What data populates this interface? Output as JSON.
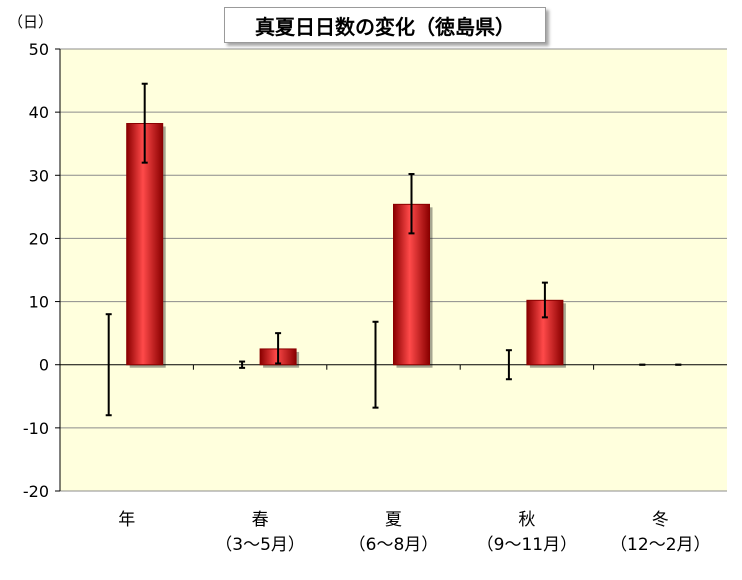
{
  "chart_data": {
    "type": "bar",
    "title": "真夏日日数の変化（徳島県）",
    "ylabel": "（日）",
    "ylim": [
      -20,
      50
    ],
    "yticks": [
      -20,
      -10,
      0,
      10,
      20,
      30,
      40,
      50
    ],
    "ytick_labels": [
      "-20",
      "-10",
      "0",
      "10",
      "20",
      "30",
      "40",
      "50"
    ],
    "grid": true,
    "legend": "none",
    "categories": [
      {
        "name": "年",
        "sub": ""
      },
      {
        "name": "春",
        "sub": "（3～5月）"
      },
      {
        "name": "夏",
        "sub": "（6～8月）"
      },
      {
        "name": "秋",
        "sub": "（9～11月）"
      },
      {
        "name": "冬",
        "sub": "（12～2月）"
      }
    ],
    "series": [
      {
        "values": [
          0,
          0,
          0,
          0,
          0
        ],
        "error_low": [
          -8,
          -0.5,
          -6.8,
          -2.3,
          0
        ],
        "error_high": [
          8,
          0.5,
          6.8,
          2.3,
          0
        ]
      },
      {
        "values": [
          38.2,
          2.5,
          25.4,
          10.2,
          0
        ],
        "error_low": [
          32,
          0.2,
          20.8,
          7.5,
          0
        ],
        "error_high": [
          44.5,
          5,
          30.2,
          13,
          0
        ]
      }
    ],
    "colors": {
      "bar": "#dd0000",
      "bar_dark": "#8a0000",
      "bar_light": "#ff4a4a",
      "plot_bg": "#ffffdd",
      "grid": "#8c8c8c"
    }
  }
}
